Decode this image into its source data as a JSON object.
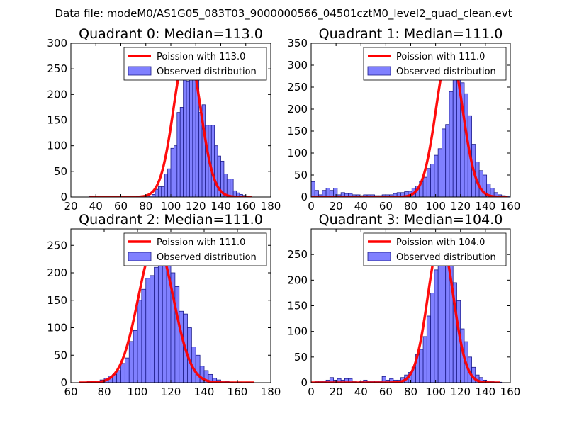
{
  "figure_title": "Data file: modeM0/AS1G05_083T03_9000000566_04501cztM0_level2_quad_clean.evt",
  "colors": {
    "bar_fill": "#8080ff",
    "bar_edge": "#1c1c8a",
    "poisson_line": "#ff0000",
    "axis": "#000000"
  },
  "chart_data": [
    {
      "type": "bar",
      "title": "Quadrant 0: Median=113.0",
      "xlim": [
        20,
        180
      ],
      "ylim": [
        0,
        300
      ],
      "xticks": [
        20,
        40,
        60,
        80,
        100,
        120,
        140,
        160,
        180
      ],
      "yticks": [
        0,
        50,
        100,
        150,
        200,
        250,
        300
      ],
      "legend": {
        "position": "top-right",
        "line_label": "Poission with 113.0",
        "bar_label": "Observed distribution"
      },
      "bin_width": 2.5,
      "bins": [
        [
          35,
          1
        ],
        [
          72.5,
          1
        ],
        [
          80,
          3
        ],
        [
          82.5,
          2
        ],
        [
          85,
          5
        ],
        [
          87.5,
          15
        ],
        [
          90,
          20
        ],
        [
          92.5,
          20
        ],
        [
          95,
          45
        ],
        [
          97.5,
          55
        ],
        [
          100,
          95
        ],
        [
          102.5,
          100
        ],
        [
          105,
          165
        ],
        [
          107.5,
          175
        ],
        [
          110,
          230
        ],
        [
          112.5,
          225
        ],
        [
          115,
          275
        ],
        [
          117.5,
          235
        ],
        [
          120,
          240
        ],
        [
          122.5,
          165
        ],
        [
          125,
          180
        ],
        [
          127.5,
          140
        ],
        [
          130,
          140
        ],
        [
          132.5,
          140
        ],
        [
          135,
          100
        ],
        [
          137.5,
          80
        ],
        [
          140,
          70
        ],
        [
          142.5,
          45
        ],
        [
          145,
          35
        ],
        [
          147.5,
          35
        ],
        [
          150,
          12
        ],
        [
          152.5,
          8
        ],
        [
          155,
          5
        ],
        [
          157.5,
          3
        ],
        [
          160,
          2
        ]
      ],
      "poisson": {
        "mean": 113.0,
        "peak": 290,
        "x_range": [
          35,
          165
        ]
      }
    },
    {
      "type": "bar",
      "title": "Quadrant 1: Median=111.0",
      "xlim": [
        0,
        160
      ],
      "ylim": [
        0,
        350
      ],
      "xticks": [
        0,
        20,
        40,
        60,
        80,
        100,
        120,
        140,
        160
      ],
      "yticks": [
        0,
        50,
        100,
        150,
        200,
        250,
        300,
        350
      ],
      "legend": {
        "position": "top-right",
        "line_label": "Poission with 111.0",
        "bar_label": "Observed distribution"
      },
      "bin_width": 3,
      "bins": [
        [
          0,
          35
        ],
        [
          3,
          15
        ],
        [
          6,
          5
        ],
        [
          9,
          15
        ],
        [
          12,
          20
        ],
        [
          15,
          15
        ],
        [
          18,
          20
        ],
        [
          21,
          5
        ],
        [
          24,
          10
        ],
        [
          27,
          8
        ],
        [
          30,
          8
        ],
        [
          33,
          5
        ],
        [
          36,
          5
        ],
        [
          39,
          3
        ],
        [
          42,
          5
        ],
        [
          45,
          5
        ],
        [
          48,
          5
        ],
        [
          51,
          3
        ],
        [
          54,
          3
        ],
        [
          57,
          5
        ],
        [
          60,
          5
        ],
        [
          63,
          5
        ],
        [
          66,
          8
        ],
        [
          69,
          10
        ],
        [
          72,
          10
        ],
        [
          75,
          12
        ],
        [
          78,
          13
        ],
        [
          81,
          20
        ],
        [
          84,
          25
        ],
        [
          87,
          35
        ],
        [
          90,
          45
        ],
        [
          93,
          65
        ],
        [
          96,
          75
        ],
        [
          99,
          95
        ],
        [
          102,
          110
        ],
        [
          105,
          155
        ],
        [
          108,
          165
        ],
        [
          111,
          240
        ],
        [
          114,
          300
        ],
        [
          117,
          320
        ],
        [
          120,
          260
        ],
        [
          123,
          235
        ],
        [
          126,
          185
        ],
        [
          129,
          120
        ],
        [
          132,
          80
        ],
        [
          135,
          60
        ],
        [
          138,
          50
        ],
        [
          141,
          30
        ],
        [
          144,
          20
        ],
        [
          147,
          10
        ],
        [
          150,
          5
        ],
        [
          153,
          3
        ],
        [
          156,
          2
        ]
      ],
      "poisson": {
        "mean": 111.0,
        "peak": 335,
        "x_range": [
          0,
          158
        ]
      }
    },
    {
      "type": "bar",
      "title": "Quadrant 2: Median=111.0",
      "xlim": [
        60,
        180
      ],
      "ylim": [
        0,
        280
      ],
      "xticks": [
        60,
        80,
        100,
        120,
        140,
        160,
        180
      ],
      "yticks": [
        0,
        50,
        100,
        150,
        200,
        250
      ],
      "legend": {
        "position": "top-right",
        "line_label": "Poission with 111.0",
        "bar_label": "Observed distribution"
      },
      "bin_width": 2.5,
      "bins": [
        [
          65,
          1
        ],
        [
          67.5,
          1
        ],
        [
          70,
          2
        ],
        [
          72.5,
          2
        ],
        [
          75,
          3
        ],
        [
          77.5,
          5
        ],
        [
          80,
          8
        ],
        [
          82.5,
          12
        ],
        [
          85,
          15
        ],
        [
          87.5,
          22
        ],
        [
          90,
          35
        ],
        [
          92.5,
          45
        ],
        [
          95,
          75
        ],
        [
          97.5,
          95
        ],
        [
          100,
          150
        ],
        [
          102.5,
          170
        ],
        [
          105,
          190
        ],
        [
          107.5,
          195
        ],
        [
          110,
          210
        ],
        [
          112.5,
          215
        ],
        [
          115,
          225
        ],
        [
          117.5,
          270
        ],
        [
          120,
          200
        ],
        [
          122.5,
          175
        ],
        [
          125,
          130
        ],
        [
          127.5,
          125
        ],
        [
          130,
          100
        ],
        [
          132.5,
          65
        ],
        [
          135,
          50
        ],
        [
          137.5,
          30
        ],
        [
          140,
          22
        ],
        [
          142.5,
          15
        ],
        [
          145,
          8
        ],
        [
          147.5,
          5
        ],
        [
          150,
          3
        ],
        [
          152.5,
          2
        ],
        [
          155,
          1
        ],
        [
          160,
          1
        ],
        [
          165,
          1
        ]
      ],
      "poisson": {
        "mean": 111.0,
        "peak": 255,
        "x_range": [
          65,
          170
        ]
      }
    },
    {
      "type": "bar",
      "title": "Quadrant 3: Median=104.0",
      "xlim": [
        0,
        160
      ],
      "ylim": [
        0,
        300
      ],
      "xticks": [
        0,
        20,
        40,
        60,
        80,
        100,
        120,
        140,
        160
      ],
      "yticks": [
        0,
        50,
        100,
        150,
        200,
        250
      ],
      "legend": {
        "position": "top-right",
        "line_label": "Poission with 104.0",
        "bar_label": "Observed distribution"
      },
      "bin_width": 3,
      "bins": [
        [
          3,
          2
        ],
        [
          6,
          2
        ],
        [
          9,
          3
        ],
        [
          12,
          5
        ],
        [
          15,
          10
        ],
        [
          18,
          5
        ],
        [
          21,
          8
        ],
        [
          24,
          5
        ],
        [
          27,
          8
        ],
        [
          30,
          8
        ],
        [
          33,
          2
        ],
        [
          39,
          3
        ],
        [
          42,
          5
        ],
        [
          45,
          3
        ],
        [
          48,
          3
        ],
        [
          51,
          2
        ],
        [
          54,
          3
        ],
        [
          57,
          12
        ],
        [
          60,
          5
        ],
        [
          63,
          8
        ],
        [
          66,
          5
        ],
        [
          69,
          5
        ],
        [
          72,
          10
        ],
        [
          75,
          15
        ],
        [
          78,
          20
        ],
        [
          81,
          30
        ],
        [
          84,
          55
        ],
        [
          87,
          65
        ],
        [
          90,
          90
        ],
        [
          93,
          130
        ],
        [
          96,
          175
        ],
        [
          99,
          220
        ],
        [
          102,
          240
        ],
        [
          105,
          270
        ],
        [
          108,
          290
        ],
        [
          111,
          245
        ],
        [
          114,
          195
        ],
        [
          117,
          160
        ],
        [
          120,
          105
        ],
        [
          123,
          80
        ],
        [
          126,
          50
        ],
        [
          129,
          30
        ],
        [
          132,
          15
        ],
        [
          135,
          10
        ],
        [
          138,
          5
        ],
        [
          141,
          2
        ],
        [
          144,
          2
        ],
        [
          147,
          1
        ],
        [
          150,
          1
        ]
      ],
      "poisson": {
        "mean": 104.0,
        "peak": 280,
        "x_range": [
          0,
          152
        ]
      }
    }
  ]
}
